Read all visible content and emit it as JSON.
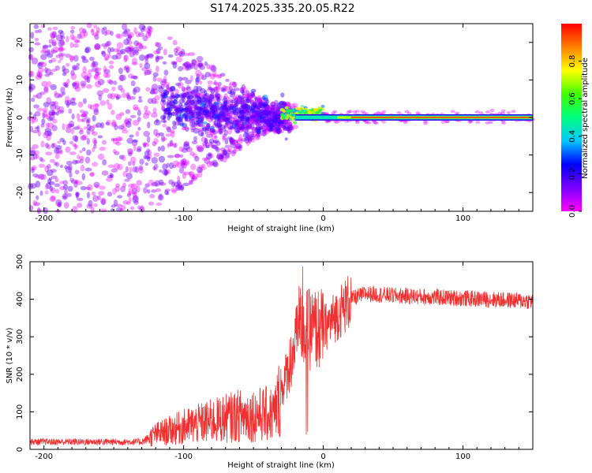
{
  "title": "S174.2025.335.20.05.R22",
  "chart_data": [
    {
      "type": "heatmap",
      "xlabel": "Height of straight line (km)",
      "ylabel": "Frequency (Hz)",
      "xlim": [
        -210,
        150
      ],
      "ylim": [
        -25,
        25
      ],
      "xticks": [
        -200,
        -100,
        0,
        100
      ],
      "yticks": [
        -20,
        -10,
        0,
        10,
        20
      ],
      "colorbar": {
        "label": "Normalized spectral amplitude",
        "range": [
          0,
          1
        ],
        "ticks": [
          "0.0",
          "0.2",
          "0.4",
          "0.6",
          "0.8"
        ],
        "colormap": [
          "#ff00ff",
          "#7a00ff",
          "#0000ff",
          "#00c8ff",
          "#00ff80",
          "#40ff00",
          "#ffff00",
          "#ff8000",
          "#ff0000"
        ]
      },
      "features": [
        {
          "name": "narrow carrier",
          "x_range": [
            0,
            150
          ],
          "frequency": 0,
          "amplitude": 0.9
        },
        {
          "name": "transition",
          "x_range": [
            -25,
            0
          ],
          "frequency": 1,
          "amplitude": 0.75
        },
        {
          "name": "scattered energy",
          "x_range": [
            -210,
            -25
          ],
          "frequency_spread": 25,
          "amplitude": 0.2
        }
      ]
    },
    {
      "type": "line",
      "xlabel": "Height of straight line (km)",
      "ylabel": "SNR (10 * v/v)",
      "xlim": [
        -210,
        150
      ],
      "ylim": [
        0,
        500
      ],
      "xticks": [
        -200,
        -100,
        0,
        100
      ],
      "yticks": [
        0,
        100,
        200,
        300,
        400,
        500
      ],
      "series_color": "#f03030",
      "profile": {
        "x": [
          -210,
          -130,
          -120,
          -100,
          -60,
          -35,
          -28,
          -20,
          -15,
          0,
          20,
          30,
          50,
          150
        ],
        "y": [
          20,
          20,
          40,
          60,
          90,
          95,
          180,
          280,
          320,
          320,
          400,
          415,
          410,
          395
        ]
      }
    }
  ]
}
